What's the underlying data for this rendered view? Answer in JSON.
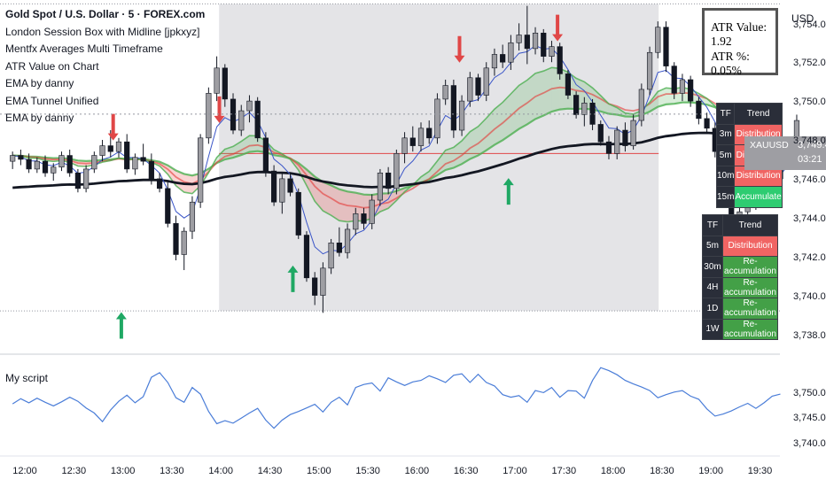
{
  "header": {
    "title": "Gold Spot / U.S. Dollar · 5 · FOREX.com",
    "indicators": [
      "London Session Box with Midline [jpkxyz]",
      "Mentfx Averages Multi Timeframe",
      "ATR Value on Chart",
      "EMA by danny",
      "EMA Tunnel Unified",
      "EMA by danny"
    ]
  },
  "currency_label": "USD",
  "atr_box": {
    "value_line": "ATR Value: 1.92",
    "pct_line": "ATR %: 0.05%"
  },
  "trend_table_1": {
    "header": [
      "TF",
      "Trend"
    ],
    "rows": [
      {
        "tf": "3m",
        "trend": "Distribution",
        "status": "distribution"
      },
      {
        "tf": "5m",
        "trend": "Distribution",
        "status": "distribution"
      },
      {
        "tf": "10m",
        "trend": "Distribution",
        "status": "distribution"
      },
      {
        "tf": "15m",
        "trend": "Accumulate",
        "status": "accumulate"
      }
    ]
  },
  "trend_table_2": {
    "header": [
      "TF",
      "Trend"
    ],
    "rows": [
      {
        "tf": "5m",
        "trend": "Distribution",
        "status": "distribution"
      },
      {
        "tf": "30m",
        "trend": "Re-accumulation",
        "status": "reaccumulation"
      },
      {
        "tf": "4H",
        "trend": "Re-accumulation",
        "status": "reaccumulation"
      },
      {
        "tf": "1D",
        "trend": "Re-accumulation",
        "status": "reaccumulation"
      },
      {
        "tf": "1W",
        "trend": "Re-accumulation",
        "status": "reaccumulation"
      }
    ]
  },
  "price_tag": {
    "symbol": "XAUUSD",
    "price": "3,749.43",
    "countdown": "03:21"
  },
  "colors": {
    "bull": "#9e9ea3",
    "bear": "#131722",
    "ema_long": "#131722",
    "ribbon_green": "#4caf50",
    "ribbon_red": "#e53935",
    "session_box": "#e1e1e4",
    "arrow_up": "#1fa864",
    "arrow_down": "#e04747",
    "osc_line": "#4a7dd8",
    "fast_ema": "#3a55c8",
    "slow_ema": "#8e44ad"
  },
  "chart_data": [
    {
      "type": "candlestick",
      "title": "Gold Spot / U.S. Dollar · 5 · FOREX.com",
      "x_ticks": [
        "12:00",
        "12:30",
        "13:00",
        "13:30",
        "14:00",
        "14:30",
        "15:00",
        "15:30",
        "16:00",
        "16:30",
        "17:00",
        "17:30",
        "18:00",
        "18:30",
        "19:00",
        "19:30"
      ],
      "y_ticks": [
        "3,754.00",
        "3,752.00",
        "3,750.00",
        "3,748.00",
        "3,746.00",
        "3,744.00",
        "3,742.00",
        "3,740.00",
        "3,738.00"
      ],
      "ylim": [
        3737.3,
        3755.3
      ],
      "session_box": {
        "start": "14:00",
        "end": "18:25",
        "high": 3755.1,
        "low": 3739.3,
        "midline": 3747.4
      },
      "last_price": 3749.43,
      "candles": [
        [
          3747.0,
          3747.5,
          3746.6,
          3747.3
        ],
        [
          3747.3,
          3747.6,
          3746.8,
          3747.1
        ],
        [
          3747.1,
          3747.4,
          3746.4,
          3746.6
        ],
        [
          3746.6,
          3747.2,
          3746.4,
          3747.0
        ],
        [
          3747.0,
          3747.3,
          3746.2,
          3746.4
        ],
        [
          3746.4,
          3746.9,
          3746.0,
          3746.7
        ],
        [
          3746.7,
          3747.5,
          3746.5,
          3747.3
        ],
        [
          3747.3,
          3747.6,
          3746.2,
          3746.4
        ],
        [
          3746.4,
          3746.6,
          3745.4,
          3745.6
        ],
        [
          3745.6,
          3746.8,
          3745.4,
          3746.6
        ],
        [
          3746.6,
          3747.5,
          3746.4,
          3747.3
        ],
        [
          3747.3,
          3748.1,
          3747.0,
          3747.8
        ],
        [
          3747.8,
          3748.6,
          3747.2,
          3747.5
        ],
        [
          3747.5,
          3748.2,
          3747.2,
          3748.0
        ],
        [
          3748.0,
          3748.4,
          3746.4,
          3746.6
        ],
        [
          3746.6,
          3747.4,
          3746.3,
          3747.2
        ],
        [
          3747.2,
          3747.9,
          3746.8,
          3747.0
        ],
        [
          3747.0,
          3747.4,
          3745.8,
          3746.1
        ],
        [
          3746.1,
          3746.4,
          3745.4,
          3745.6
        ],
        [
          3745.6,
          3746.0,
          3743.6,
          3743.8
        ],
        [
          3743.8,
          3744.2,
          3741.9,
          3742.2
        ],
        [
          3742.2,
          3743.6,
          3741.4,
          3743.4
        ],
        [
          3743.4,
          3745.2,
          3743.0,
          3744.9
        ],
        [
          3744.9,
          3748.4,
          3744.6,
          3748.2
        ],
        [
          3748.2,
          3750.8,
          3747.9,
          3750.5
        ],
        [
          3750.5,
          3752.4,
          3750.1,
          3751.8
        ],
        [
          3751.8,
          3752.0,
          3749.8,
          3750.2
        ],
        [
          3750.2,
          3750.5,
          3748.4,
          3748.6
        ],
        [
          3748.6,
          3749.9,
          3748.3,
          3749.6
        ],
        [
          3749.6,
          3750.4,
          3749.0,
          3750.1
        ],
        [
          3750.1,
          3750.3,
          3748.0,
          3748.2
        ],
        [
          3748.2,
          3748.5,
          3746.2,
          3746.5
        ],
        [
          3746.5,
          3746.8,
          3744.7,
          3744.9
        ],
        [
          3744.9,
          3746.4,
          3744.3,
          3746.1
        ],
        [
          3746.1,
          3746.4,
          3745.2,
          3745.4
        ],
        [
          3745.4,
          3745.6,
          3743.0,
          3743.2
        ],
        [
          3743.2,
          3743.4,
          3740.8,
          3741.0
        ],
        [
          3741.0,
          3741.3,
          3739.6,
          3740.1
        ],
        [
          3740.1,
          3741.8,
          3739.2,
          3741.5
        ],
        [
          3741.5,
          3743.0,
          3741.2,
          3742.8
        ],
        [
          3742.8,
          3743.6,
          3742.1,
          3742.3
        ],
        [
          3742.3,
          3743.8,
          3742.0,
          3743.5
        ],
        [
          3743.5,
          3744.6,
          3743.2,
          3744.3
        ],
        [
          3744.3,
          3744.6,
          3743.5,
          3743.8
        ],
        [
          3743.8,
          3745.3,
          3743.5,
          3745.0
        ],
        [
          3745.0,
          3746.6,
          3744.7,
          3746.4
        ],
        [
          3746.4,
          3746.7,
          3745.3,
          3745.6
        ],
        [
          3745.6,
          3747.6,
          3745.3,
          3747.4
        ],
        [
          3747.4,
          3748.5,
          3746.9,
          3748.2
        ],
        [
          3748.2,
          3748.8,
          3747.5,
          3747.8
        ],
        [
          3747.8,
          3749.0,
          3747.5,
          3748.7
        ],
        [
          3748.7,
          3749.1,
          3747.9,
          3748.2
        ],
        [
          3748.2,
          3750.5,
          3747.9,
          3750.2
        ],
        [
          3750.2,
          3751.2,
          3749.9,
          3750.9
        ],
        [
          3750.9,
          3751.2,
          3748.2,
          3748.6
        ],
        [
          3748.6,
          3750.4,
          3748.3,
          3750.1
        ],
        [
          3750.1,
          3751.6,
          3749.8,
          3751.3
        ],
        [
          3751.3,
          3751.5,
          3750.1,
          3750.4
        ],
        [
          3750.4,
          3752.1,
          3750.1,
          3751.8
        ],
        [
          3751.8,
          3752.8,
          3751.4,
          3752.5
        ],
        [
          3752.5,
          3753.0,
          3751.8,
          3752.1
        ],
        [
          3752.1,
          3753.5,
          3751.7,
          3753.1
        ],
        [
          3753.1,
          3754.1,
          3752.7,
          3753.5
        ],
        [
          3753.5,
          3755.0,
          3752.0,
          3752.8
        ],
        [
          3752.8,
          3753.9,
          3752.5,
          3753.6
        ],
        [
          3753.6,
          3753.8,
          3752.1,
          3752.4
        ],
        [
          3752.4,
          3753.2,
          3752.1,
          3752.9
        ],
        [
          3752.9,
          3753.1,
          3751.2,
          3751.5
        ],
        [
          3751.5,
          3751.7,
          3750.2,
          3750.4
        ],
        [
          3750.4,
          3750.6,
          3749.2,
          3749.4
        ],
        [
          3749.4,
          3750.3,
          3748.8,
          3750.0
        ],
        [
          3750.0,
          3750.2,
          3748.6,
          3748.9
        ],
        [
          3748.9,
          3749.1,
          3747.8,
          3748.0
        ],
        [
          3748.0,
          3748.3,
          3747.1,
          3747.4
        ],
        [
          3747.4,
          3748.8,
          3747.1,
          3748.6
        ],
        [
          3748.6,
          3749.0,
          3747.5,
          3747.8
        ],
        [
          3747.8,
          3749.4,
          3747.6,
          3749.1
        ],
        [
          3749.1,
          3751.0,
          3748.8,
          3750.7
        ],
        [
          3750.7,
          3752.9,
          3750.4,
          3752.6
        ],
        [
          3752.6,
          3754.2,
          3752.3,
          3753.9
        ],
        [
          3753.9,
          3754.2,
          3751.6,
          3751.9
        ],
        [
          3751.9,
          3752.1,
          3750.2,
          3750.5
        ],
        [
          3750.5,
          3751.5,
          3750.1,
          3751.2
        ],
        [
          3751.2,
          3751.4,
          3749.8,
          3750.1
        ],
        [
          3750.1,
          3750.3,
          3748.9,
          3749.2
        ],
        [
          3749.2,
          3749.5,
          3748.4,
          3748.7
        ],
        [
          3748.7,
          3749.0,
          3747.2,
          3747.5
        ],
        [
          3747.5,
          3747.7,
          3745.4,
          3745.8
        ],
        [
          3745.8,
          3746.0,
          3743.8,
          3744.2
        ],
        [
          3744.2,
          3744.7,
          3743.2,
          3744.4
        ],
        [
          3744.4,
          3745.3,
          3744.0,
          3744.9
        ],
        [
          3744.9,
          3746.2,
          3744.5,
          3745.9
        ],
        [
          3745.9,
          3746.6,
          3745.5,
          3746.3
        ],
        [
          3746.3,
          3746.6,
          3745.8,
          3746.1
        ],
        [
          3746.1,
          3747.3,
          3745.8,
          3747.0
        ],
        [
          3747.0,
          3748.1,
          3746.8,
          3747.8
        ],
        [
          3747.8,
          3749.4,
          3747.6,
          3749.1
        ]
      ],
      "arrows": [
        {
          "dir": "up",
          "x": "12:58",
          "price": 3739.6
        },
        {
          "dir": "down",
          "x": "12:53",
          "price": 3747.8
        },
        {
          "dir": "down",
          "x": "13:58",
          "price": 3748.7
        },
        {
          "dir": "up",
          "x": "14:43",
          "price": 3742.0
        },
        {
          "dir": "down",
          "x": "16:25",
          "price": 3751.8
        },
        {
          "dir": "up",
          "x": "16:55",
          "price": 3746.5
        },
        {
          "dir": "down",
          "x": "17:25",
          "price": 3752.9
        }
      ]
    },
    {
      "type": "line",
      "title": "My script",
      "y_ticks": [
        "3,750.00",
        "3,745.00",
        "3,740.00"
      ],
      "ylim": [
        3739.5,
        3756
      ],
      "values": [
        3748.0,
        3749.0,
        3748.2,
        3749.1,
        3748.3,
        3747.6,
        3748.4,
        3749.3,
        3748.5,
        3747.2,
        3746.2,
        3744.5,
        3746.8,
        3748.5,
        3749.7,
        3748.2,
        3749.4,
        3753.2,
        3754.1,
        3752.2,
        3749.2,
        3748.3,
        3751.2,
        3749.9,
        3746.5,
        3744.1,
        3744.7,
        3744.2,
        3745.2,
        3746.2,
        3747.1,
        3744.8,
        3743.2,
        3744.8,
        3745.9,
        3746.5,
        3747.2,
        3747.9,
        3746.4,
        3748.3,
        3749.3,
        3747.8,
        3751.2,
        3751.8,
        3752.1,
        3750.5,
        3753.1,
        3752.3,
        3751.6,
        3752.3,
        3752.6,
        3753.5,
        3752.9,
        3752.2,
        3753.6,
        3753.9,
        3752.2,
        3753.8,
        3752.2,
        3751.5,
        3749.8,
        3749.3,
        3749.6,
        3748.3,
        3750.6,
        3750.2,
        3751.2,
        3749.3,
        3750.6,
        3750.5,
        3749.1,
        3752.6,
        3755.1,
        3754.5,
        3753.7,
        3752.6,
        3751.9,
        3751.3,
        3750.6,
        3749.2,
        3749.8,
        3750.3,
        3750.6,
        3749.5,
        3748.9,
        3747.0,
        3745.6,
        3746.0,
        3746.6,
        3747.4,
        3748.1,
        3747.1,
        3748.2,
        3749.5,
        3749.9
      ]
    }
  ]
}
